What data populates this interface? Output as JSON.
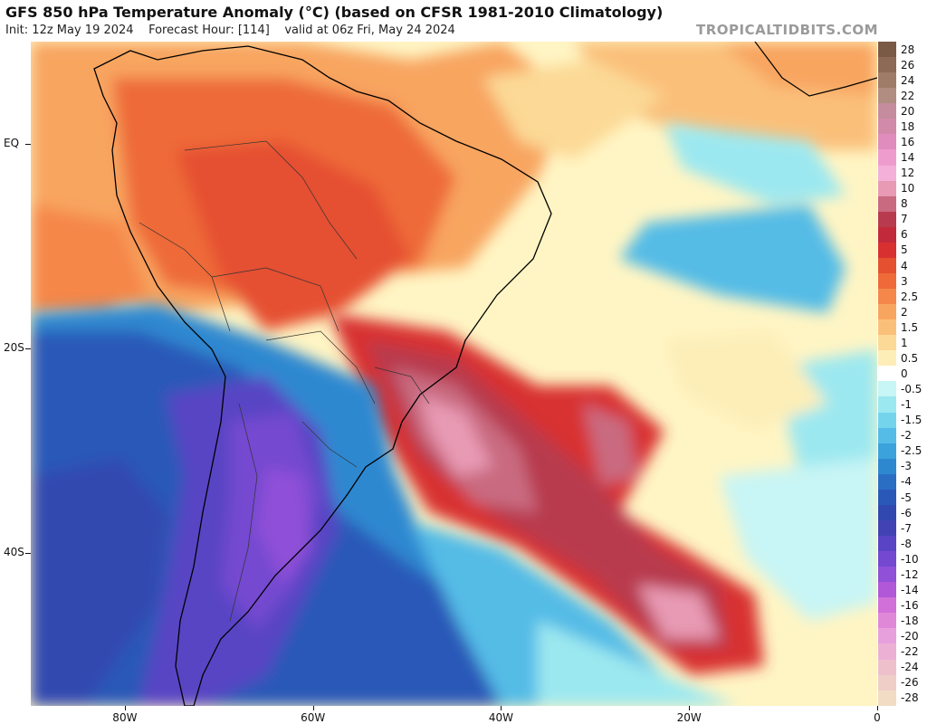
{
  "title": "GFS 850 hPa Temperature Anomaly (°C) (based on CFSR 1981-2010 Climatology)",
  "subtitle": {
    "init": "Init: 12z May 19 2024",
    "forecast_hour": "Forecast Hour: [114]",
    "valid": "valid at 06z Fri, May 24 2024"
  },
  "brand": "TROPICALTIDBITS.COM",
  "map": {
    "lon_range": [
      -90,
      0
    ],
    "lat_range": [
      -55,
      10
    ],
    "lat_labels": [
      {
        "lat": 0,
        "label": "EQ"
      },
      {
        "lat": -20,
        "label": "20S"
      },
      {
        "lat": -40,
        "label": "40S"
      }
    ],
    "lon_labels": [
      {
        "lon": -80,
        "label": "80W"
      },
      {
        "lon": -60,
        "label": "60W"
      },
      {
        "lon": -40,
        "label": "40W"
      },
      {
        "lon": -20,
        "label": "20W"
      },
      {
        "lon": 0,
        "label": "0"
      }
    ],
    "base_color": "#fff5c4"
  },
  "colorbar": {
    "levels": [
      {
        "label": "28",
        "color": "#7a5a45"
      },
      {
        "label": "26",
        "color": "#8c6a55"
      },
      {
        "label": "24",
        "color": "#9f7c68"
      },
      {
        "label": "22",
        "color": "#b08d80"
      },
      {
        "label": "20",
        "color": "#c48c9c"
      },
      {
        "label": "18",
        "color": "#d28aaa"
      },
      {
        "label": "16",
        "color": "#e08cbc"
      },
      {
        "label": "14",
        "color": "#ee9ccd"
      },
      {
        "label": "12",
        "color": "#f4b0d8"
      },
      {
        "label": "10",
        "color": "#e89ab4"
      },
      {
        "label": "8",
        "color": "#c96a80"
      },
      {
        "label": "7",
        "color": "#b83a4e"
      },
      {
        "label": "6",
        "color": "#c22a3c"
      },
      {
        "label": "5",
        "color": "#d83030"
      },
      {
        "label": "4",
        "color": "#e55030"
      },
      {
        "label": "3",
        "color": "#ee6a38"
      },
      {
        "label": "2.5",
        "color": "#f5874a"
      },
      {
        "label": "2",
        "color": "#f8a560"
      },
      {
        "label": "1.5",
        "color": "#fac07a"
      },
      {
        "label": "1",
        "color": "#fcd996"
      },
      {
        "label": "0.5",
        "color": "#fdeeb8"
      },
      {
        "label": "0",
        "color": "#ffffff"
      },
      {
        "label": "-0.5",
        "color": "#c8f5f5"
      },
      {
        "label": "-1",
        "color": "#9ce8f0"
      },
      {
        "label": "-1.5",
        "color": "#74d4ec"
      },
      {
        "label": "-2",
        "color": "#54bce6"
      },
      {
        "label": "-2.5",
        "color": "#3ca2dc"
      },
      {
        "label": "-3",
        "color": "#2e88d0"
      },
      {
        "label": "-4",
        "color": "#2a6ec4"
      },
      {
        "label": "-5",
        "color": "#2a58b8"
      },
      {
        "label": "-6",
        "color": "#3048b0"
      },
      {
        "label": "-7",
        "color": "#4242b4"
      },
      {
        "label": "-8",
        "color": "#5844c4"
      },
      {
        "label": "-10",
        "color": "#7448d0"
      },
      {
        "label": "-12",
        "color": "#9050d8"
      },
      {
        "label": "-14",
        "color": "#b058d8"
      },
      {
        "label": "-16",
        "color": "#d070d8"
      },
      {
        "label": "-18",
        "color": "#e088d8"
      },
      {
        "label": "-20",
        "color": "#e8a0dc"
      },
      {
        "label": "-22",
        "color": "#ecb0d4"
      },
      {
        "label": "-24",
        "color": "#eec0cc"
      },
      {
        "label": "-26",
        "color": "#f0cec8"
      },
      {
        "label": "-28",
        "color": "#f2dcc4"
      }
    ]
  }
}
